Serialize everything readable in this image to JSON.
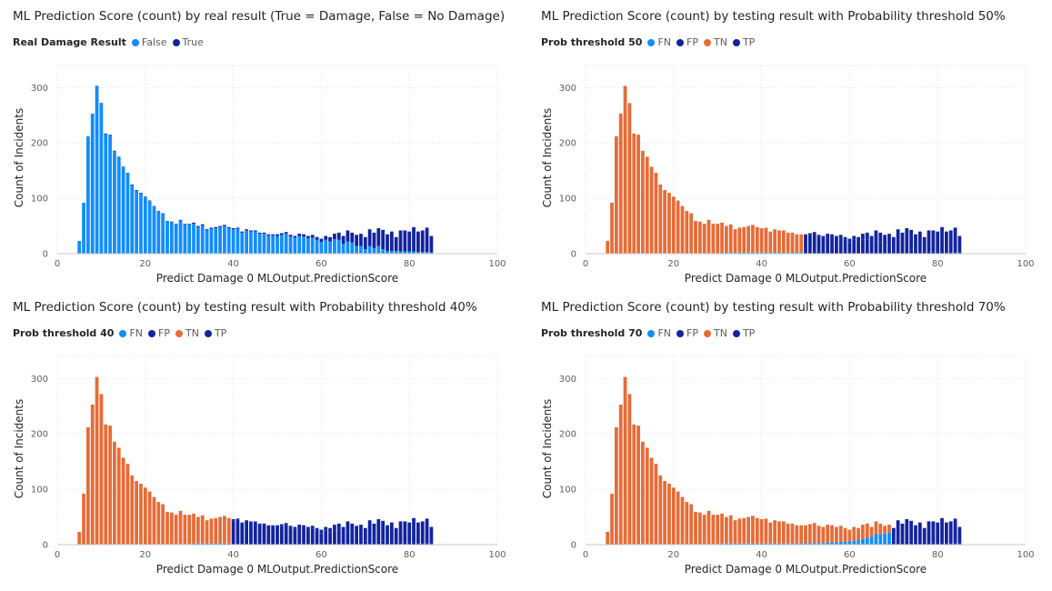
{
  "colors": {
    "blue": "#118DFF",
    "navy": "#12239E",
    "orange": "#E66C37",
    "grid": "#E1DFDD"
  },
  "chart_data": [
    {
      "type": "bar",
      "title": "ML Prediction Score (count) by real result (True = Damage, False = No Damage)",
      "legend_title": "Real Damage Result",
      "legend": [
        {
          "name": "False",
          "color": "#118DFF"
        },
        {
          "name": "True",
          "color": "#12239E"
        }
      ],
      "xlabel": "Predict Damage 0 MLOutput.PredictionScore",
      "ylabel": "Count of Incidents",
      "xlim": [
        0,
        100
      ],
      "ylim": [
        0,
        340
      ],
      "xticks": [
        "0",
        "20",
        "40",
        "60",
        "80",
        "100"
      ],
      "yticks": [
        "0",
        "100",
        "200",
        "300"
      ],
      "grid": true,
      "legend_position": "top-left",
      "totals": [
        23,
        92,
        212,
        253,
        303,
        272,
        217,
        215,
        186,
        175,
        157,
        146,
        125,
        115,
        110,
        103,
        96,
        86,
        77,
        73,
        59,
        58,
        54,
        61,
        54,
        54,
        56,
        50,
        53,
        44,
        47,
        48,
        50,
        52,
        48,
        46,
        47,
        40,
        44,
        42,
        42,
        38,
        38,
        35,
        35,
        35,
        37,
        39,
        34,
        32,
        36,
        35,
        32,
        34,
        30,
        27,
        32,
        30,
        36,
        38,
        32,
        42,
        38,
        34,
        36,
        30,
        44,
        38,
        46,
        43,
        35,
        40,
        30,
        42,
        42,
        40,
        48,
        40,
        42,
        47,
        32
      ],
      "true_counts": [
        0,
        0,
        0,
        0,
        1,
        1,
        1,
        1,
        1,
        1,
        1,
        1,
        1,
        1,
        1,
        1,
        1,
        1,
        1,
        1,
        1,
        1,
        1,
        1,
        1,
        1,
        2,
        2,
        2,
        2,
        2,
        2,
        2,
        2,
        2,
        2,
        2,
        2,
        2,
        2,
        2,
        2,
        2,
        2,
        2,
        3,
        3,
        3,
        3,
        3,
        4,
        4,
        4,
        5,
        5,
        6,
        7,
        8,
        10,
        13,
        14,
        20,
        18,
        20,
        22,
        22,
        30,
        28,
        32,
        35,
        30,
        35,
        25,
        38,
        38,
        36,
        44,
        37,
        39,
        44,
        30
      ]
    },
    {
      "type": "bar",
      "title": "ML Prediction Score (count) by testing result with Probability threshold 50%",
      "legend_title": "Prob threshold 50",
      "legend": [
        {
          "name": "FN",
          "color": "#118DFF"
        },
        {
          "name": "FP",
          "color": "#12239E"
        },
        {
          "name": "TN",
          "color": "#E66C37"
        },
        {
          "name": "TP",
          "color": "#12239E"
        }
      ],
      "threshold": 50,
      "xlabel": "Predict Damage 0 MLOutput.PredictionScore",
      "ylabel": "Count of Incidents",
      "xlim": [
        0,
        100
      ],
      "ylim": [
        0,
        340
      ],
      "xticks": [
        "0",
        "20",
        "40",
        "60",
        "80",
        "100"
      ],
      "yticks": [
        "0",
        "100",
        "200",
        "300"
      ],
      "grid": true,
      "legend_position": "top-left"
    },
    {
      "type": "bar",
      "title": "ML Prediction Score (count) by testing result with Probability threshold 40%",
      "legend_title": "Prob threshold 40",
      "legend": [
        {
          "name": "FN",
          "color": "#118DFF"
        },
        {
          "name": "FP",
          "color": "#12239E"
        },
        {
          "name": "TN",
          "color": "#E66C37"
        },
        {
          "name": "TP",
          "color": "#12239E"
        }
      ],
      "threshold": 40,
      "xlabel": "Predict Damage 0 MLOutput.PredictionScore",
      "ylabel": "Count of Incidents",
      "xlim": [
        0,
        100
      ],
      "ylim": [
        0,
        340
      ],
      "xticks": [
        "0",
        "20",
        "40",
        "60",
        "80",
        "100"
      ],
      "yticks": [
        "0",
        "100",
        "200",
        "300"
      ],
      "grid": true,
      "legend_position": "top-left"
    },
    {
      "type": "bar",
      "title": "ML Prediction Score (count) by testing result with Probability threshold 70%",
      "legend_title": "Prob threshold 70",
      "legend": [
        {
          "name": "FN",
          "color": "#118DFF"
        },
        {
          "name": "FP",
          "color": "#12239E"
        },
        {
          "name": "TN",
          "color": "#E66C37"
        },
        {
          "name": "TP",
          "color": "#12239E"
        }
      ],
      "threshold": 70,
      "xlabel": "Predict Damage 0 MLOutput.PredictionScore",
      "ylabel": "Count of Incidents",
      "xlim": [
        0,
        100
      ],
      "ylim": [
        0,
        340
      ],
      "xticks": [
        "0",
        "20",
        "40",
        "60",
        "80",
        "100"
      ],
      "yticks": [
        "0",
        "100",
        "200",
        "300"
      ],
      "grid": true,
      "legend_position": "top-left"
    }
  ]
}
